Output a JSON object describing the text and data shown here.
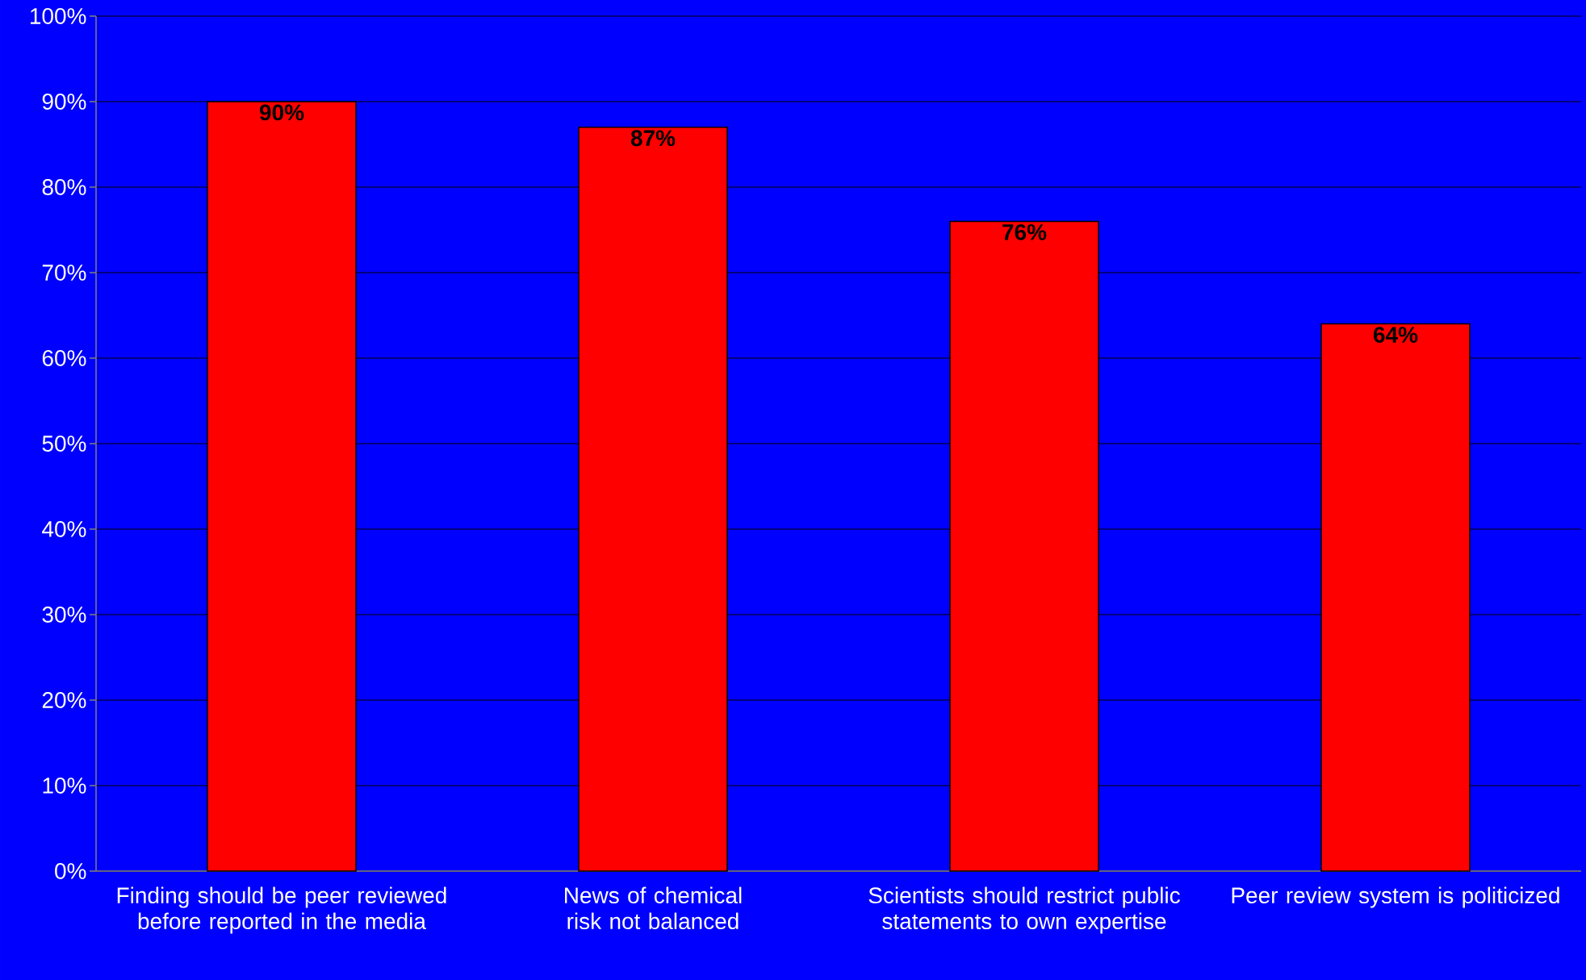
{
  "chart_data": {
    "type": "bar",
    "categories": [
      "Finding should be peer reviewed before reported in the media",
      "News of chemical risk not balanced",
      "Scientists should restrict public statements to own expertise",
      "Peer review system is politicized"
    ],
    "values": [
      90,
      87,
      76,
      64
    ],
    "value_labels": [
      "90%",
      "87%",
      "76%",
      "64%"
    ],
    "color": "#ff0000",
    "ylim": [
      0,
      100
    ],
    "yticks": [
      {
        "value": 0,
        "label": "0%"
      },
      {
        "value": 10,
        "label": "10%"
      },
      {
        "value": 20,
        "label": "20%"
      },
      {
        "value": 30,
        "label": "30%"
      },
      {
        "value": 40,
        "label": "40%"
      },
      {
        "value": 50,
        "label": "50%"
      },
      {
        "value": 60,
        "label": "60%"
      },
      {
        "value": 70,
        "label": "70%"
      },
      {
        "value": 80,
        "label": "80%"
      },
      {
        "value": 90,
        "label": "90%"
      },
      {
        "value": 100,
        "label": "100%"
      }
    ],
    "grid": "y"
  }
}
